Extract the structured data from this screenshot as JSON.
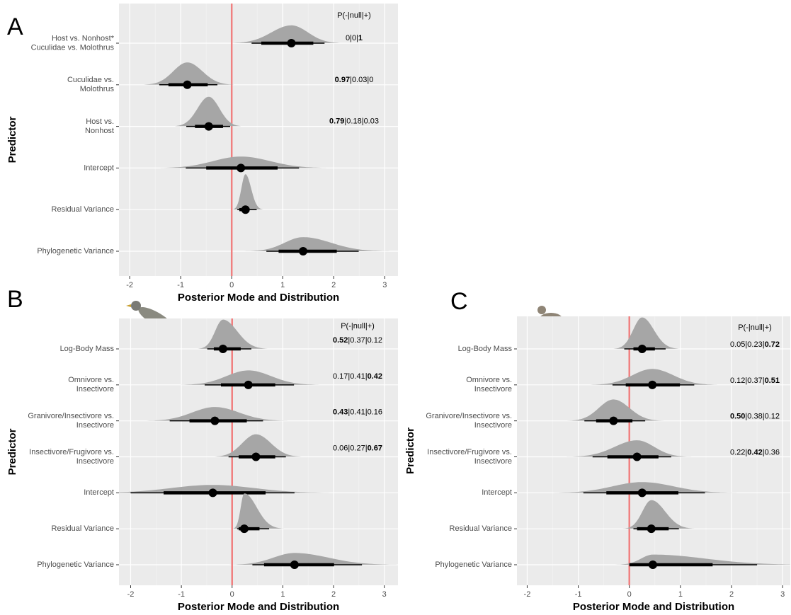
{
  "chart_data": [
    {
      "type": "halfeye",
      "panel_label": "A",
      "xlabel": "Posterior Mode and Distribution",
      "ylabel": "Predictor",
      "categories": [
        [
          "Host vs. Nonhost*",
          "Cuculidae vs. Molothrus"
        ],
        [
          "Cuculidae vs.",
          "Molothrus"
        ],
        [
          "Host vs.",
          "Nonhost"
        ],
        [
          "Intercept"
        ],
        [
          "Residual Variance"
        ],
        [
          "Phylogenetic Variance"
        ]
      ],
      "modes": [
        1.17,
        -0.87,
        -0.45,
        0.18,
        0.27,
        1.4
      ],
      "inner": [
        [
          0.58,
          1.6
        ],
        [
          -1.24,
          -0.47
        ],
        [
          -0.72,
          -0.17
        ],
        [
          -0.5,
          0.9
        ],
        [
          0.15,
          0.35
        ],
        [
          0.92,
          2.06
        ]
      ],
      "outer": [
        [
          0.39,
          1.82
        ],
        [
          -1.42,
          -0.28
        ],
        [
          -0.89,
          -0.03
        ],
        [
          -0.9,
          1.32
        ],
        [
          0.11,
          0.49
        ],
        [
          0.68,
          2.49
        ]
      ],
      "annotation_header": "P(-|null|+)",
      "annotations": [
        "0|0|1",
        "0.97|0.03|0",
        "0.79|0.18|0.03",
        null,
        null,
        null
      ],
      "bold_part": [
        2,
        0,
        0,
        null,
        null,
        null
      ],
      "xlim": [
        -2.21,
        3.26
      ],
      "xticks": [
        -2,
        -1,
        0,
        1,
        2,
        3
      ],
      "minor_xticks": [
        -1.5,
        -0.5,
        0.5,
        1.5,
        2.5
      ],
      "ref_line": 0,
      "ref_color": "#f08080",
      "density_color": "#a6a6a6",
      "point_color": "#000000",
      "panel_color": "#ebebeb"
    },
    {
      "type": "halfeye",
      "panel_label": "B",
      "xlabel": "Posterior Mode and Distribution",
      "ylabel": "Predictor",
      "categories": [
        [
          "Log-Body Mass"
        ],
        [
          "Omnivore vs.",
          "Insectivore"
        ],
        [
          "Granivore/Insectivore vs.",
          "Insectivore"
        ],
        [
          "Insectivore/Frugivore vs.",
          "Insectivore"
        ],
        [
          "Intercept"
        ],
        [
          "Residual Variance"
        ],
        [
          "Phylogenetic Variance"
        ]
      ],
      "modes": [
        -0.18,
        0.32,
        -0.34,
        0.47,
        -0.38,
        0.24,
        1.23
      ],
      "inner": [
        [
          -0.36,
          0.17
        ],
        [
          -0.22,
          0.85
        ],
        [
          -0.84,
          0.29
        ],
        [
          0.13,
          0.85
        ],
        [
          -1.35,
          0.66
        ],
        [
          0.13,
          0.54
        ],
        [
          0.63,
          2.01
        ]
      ],
      "outer": [
        [
          -0.49,
          0.38
        ],
        [
          -0.54,
          1.22
        ],
        [
          -1.23,
          0.61
        ],
        [
          -0.07,
          1.06
        ],
        [
          -2.0,
          1.23
        ],
        [
          0.1,
          0.73
        ],
        [
          0.4,
          2.56
        ]
      ],
      "annotation_header": "P(-|null|+)",
      "annotations": [
        "0.52|0.37|0.12",
        "0.17|0.41|0.42",
        "0.43|0.41|0.16",
        "0.06|0.27|0.67",
        null,
        null,
        null
      ],
      "bold_part": [
        0,
        2,
        0,
        2,
        null,
        null,
        null
      ],
      "xlim": [
        -2.23,
        3.27
      ],
      "xticks": [
        -2,
        -1,
        0,
        1,
        2,
        3
      ],
      "minor_xticks": [
        -1.5,
        -0.5,
        0.5,
        1.5,
        2.5
      ],
      "ref_line": 0,
      "ref_color": "#f08080",
      "density_color": "#a6a6a6",
      "point_color": "#000000",
      "panel_color": "#ebebeb"
    },
    {
      "type": "halfeye",
      "panel_label": "C",
      "xlabel": "Posterior Mode and Distribution",
      "ylabel": "Predictor",
      "categories": [
        [
          "Log-Body Mass"
        ],
        [
          "Omnivore vs.",
          "Insectivore"
        ],
        [
          "Granivore/Insectivore vs.",
          "Insectivore"
        ],
        [
          "Insectivore/Frugivore vs.",
          "Insectivore"
        ],
        [
          "Intercept"
        ],
        [
          "Residual Variance"
        ],
        [
          "Phylogenetic Variance"
        ]
      ],
      "modes": [
        0.25,
        0.45,
        -0.31,
        0.15,
        0.25,
        0.43,
        0.46
      ],
      "inner": [
        [
          0.08,
          0.5
        ],
        [
          -0.07,
          0.99
        ],
        [
          -0.65,
          0.06
        ],
        [
          -0.43,
          0.57
        ],
        [
          -0.45,
          0.96
        ],
        [
          0.15,
          0.77
        ],
        [
          0.0,
          1.63
        ]
      ],
      "outer": [
        [
          -0.1,
          0.71
        ],
        [
          -0.33,
          1.27
        ],
        [
          -0.88,
          0.31
        ],
        [
          -0.72,
          0.82
        ],
        [
          -0.9,
          1.48
        ],
        [
          0.08,
          0.97
        ],
        [
          0.0,
          2.5
        ]
      ],
      "annotation_header": "P(-|null|+)",
      "annotations": [
        "0.05|0.23|0.72",
        "0.12|0.37|0.51",
        "0.50|0.38|0.12",
        "0.22|0.42|0.36",
        null,
        null,
        null
      ],
      "bold_part": [
        2,
        2,
        0,
        1,
        null,
        null,
        null
      ],
      "xlim": [
        -2.2,
        3.15
      ],
      "xticks": [
        -2,
        -1,
        0,
        1,
        2,
        3
      ],
      "minor_xticks": [
        -1.5,
        -0.5,
        0.5,
        1.5,
        2.5
      ],
      "ref_line": 0,
      "ref_color": "#f08080",
      "density_color": "#a6a6a6",
      "point_color": "#000000",
      "panel_color": "#ebebeb"
    }
  ]
}
